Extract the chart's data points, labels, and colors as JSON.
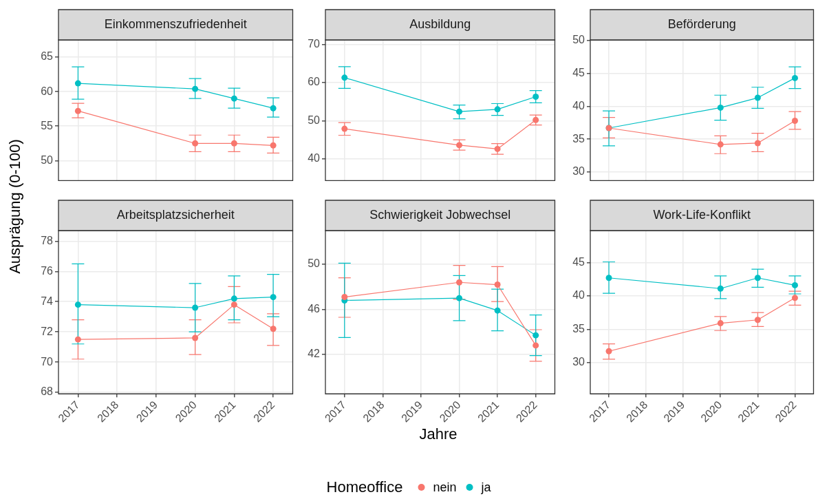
{
  "chart_data": [
    {
      "type": "line",
      "title": "Einkommenszufriedenheit",
      "legend_title": "Homeoffice",
      "legend": "bottom",
      "x": [
        2017,
        2020,
        2021,
        2022
      ],
      "xlim": [
        2016.5,
        2022.5
      ],
      "xticks": [
        2017,
        2018,
        2019,
        2020,
        2021,
        2022
      ],
      "ylim": [
        47.1,
        67.5
      ],
      "yticks": [
        50,
        55,
        60,
        65
      ],
      "tick_labels": "y",
      "grid": true,
      "marker": "circle",
      "series": [
        {
          "name": "nein",
          "color": "#f8766d",
          "values": [
            57.2,
            52.5,
            52.5,
            52.2
          ],
          "errors": [
            [
              56.2,
              58.3
            ],
            [
              51.3,
              53.7
            ],
            [
              51.3,
              53.7
            ],
            [
              51.1,
              53.4
            ]
          ]
        },
        {
          "name": "ja",
          "color": "#00bfc4",
          "values": [
            61.2,
            60.4,
            59.0,
            57.6
          ],
          "errors": [
            [
              58.9,
              63.6
            ],
            [
              59.0,
              61.9
            ],
            [
              57.6,
              60.5
            ],
            [
              56.3,
              59.1
            ]
          ]
        }
      ]
    },
    {
      "type": "line",
      "title": "Ausbildung",
      "x": [
        2017,
        2020,
        2021,
        2022
      ],
      "xlim": [
        2016.5,
        2022.5
      ],
      "xticks": [
        2017,
        2018,
        2019,
        2020,
        2021,
        2022
      ],
      "ylim": [
        34.3,
        71.2
      ],
      "yticks": [
        40,
        50,
        60,
        70
      ],
      "tick_labels": "y",
      "grid": true,
      "marker": "circle",
      "series": [
        {
          "color": "#f8766d",
          "values": [
            47.9,
            43.6,
            42.6,
            50.2
          ],
          "errors": [
            [
              46.2,
              49.5
            ],
            [
              42.3,
              45.0
            ],
            [
              41.2,
              44.0
            ],
            [
              48.9,
              51.5
            ]
          ]
        },
        {
          "color": "#00bfc4",
          "values": [
            61.3,
            52.4,
            53.0,
            56.3
          ],
          "errors": [
            [
              58.5,
              64.2
            ],
            [
              50.5,
              54.1
            ],
            [
              51.4,
              54.5
            ],
            [
              54.7,
              57.9
            ]
          ]
        }
      ]
    },
    {
      "type": "line",
      "title": "Beförderung",
      "x": [
        2017,
        2020,
        2021,
        2022
      ],
      "xlim": [
        2016.5,
        2022.5
      ],
      "xticks": [
        2017,
        2018,
        2019,
        2020,
        2021,
        2022
      ],
      "ylim": [
        28.7,
        50.1
      ],
      "yticks": [
        30,
        35,
        40,
        45,
        50
      ],
      "tick_labels": "y",
      "grid": true,
      "marker": "circle",
      "series": [
        {
          "color": "#f8766d",
          "values": [
            36.7,
            34.2,
            34.4,
            37.8
          ],
          "errors": [
            [
              35.2,
              38.3
            ],
            [
              32.8,
              35.5
            ],
            [
              33.1,
              35.9
            ],
            [
              36.5,
              39.2
            ]
          ]
        },
        {
          "color": "#00bfc4",
          "values": [
            36.7,
            39.8,
            41.3,
            44.3
          ],
          "errors": [
            [
              34.0,
              39.3
            ],
            [
              37.9,
              41.7
            ],
            [
              39.7,
              42.9
            ],
            [
              42.7,
              46.0
            ]
          ]
        }
      ]
    },
    {
      "type": "line",
      "title": "Arbeitsplatzsicherheit",
      "ylabel": "Ausprägung (0-100)",
      "x": [
        2017,
        2020,
        2021,
        2022
      ],
      "xlim": [
        2016.5,
        2022.5
      ],
      "xticks": [
        2017,
        2018,
        2019,
        2020,
        2021,
        2022
      ],
      "ylim": [
        67.9,
        78.7
      ],
      "yticks": [
        68,
        70,
        72,
        74,
        76,
        78
      ],
      "grid": true,
      "marker": "circle",
      "series": [
        {
          "color": "#f8766d",
          "values": [
            71.5,
            71.6,
            73.8,
            72.2
          ],
          "errors": [
            [
              70.2,
              72.8
            ],
            [
              70.5,
              72.8
            ],
            [
              72.6,
              75.0
            ],
            [
              71.1,
              73.2
            ]
          ]
        },
        {
          "color": "#00bfc4",
          "values": [
            73.8,
            73.6,
            74.2,
            74.3
          ],
          "errors": [
            [
              71.2,
              76.5
            ],
            [
              72.0,
              75.2
            ],
            [
              72.8,
              75.7
            ],
            [
              73.0,
              75.8
            ]
          ]
        }
      ]
    },
    {
      "type": "line",
      "title": "Schwierigkeit Jobwechsel",
      "xlabel": "Jahre",
      "x": [
        2017,
        2020,
        2021,
        2022
      ],
      "xlim": [
        2016.5,
        2022.5
      ],
      "xticks": [
        2017,
        2018,
        2019,
        2020,
        2021,
        2022
      ],
      "ylim": [
        38.5,
        53.0
      ],
      "yticks": [
        42,
        46,
        50
      ],
      "grid": true,
      "marker": "circle",
      "series": [
        {
          "color": "#f8766d",
          "values": [
            47.1,
            48.4,
            48.2,
            42.8
          ],
          "errors": [
            [
              45.3,
              48.8
            ],
            [
              46.9,
              49.9
            ],
            [
              46.7,
              49.8
            ],
            [
              41.4,
              44.2
            ]
          ]
        },
        {
          "color": "#00bfc4",
          "values": [
            46.8,
            47.0,
            45.9,
            43.7
          ],
          "errors": [
            [
              43.5,
              50.1
            ],
            [
              45.0,
              49.0
            ],
            [
              44.1,
              47.8
            ],
            [
              41.9,
              45.5
            ]
          ]
        }
      ]
    },
    {
      "type": "line",
      "title": "Work-Life-Konflikt",
      "x": [
        2017,
        2020,
        2021,
        2022
      ],
      "xlim": [
        2016.5,
        2022.5
      ],
      "xticks": [
        2017,
        2018,
        2019,
        2020,
        2021,
        2022
      ],
      "ylim": [
        25.3,
        49.8
      ],
      "yticks": [
        30,
        35,
        40,
        45
      ],
      "grid": true,
      "marker": "circle",
      "series": [
        {
          "color": "#f8766d",
          "values": [
            31.7,
            35.9,
            36.4,
            39.7
          ],
          "errors": [
            [
              30.5,
              32.8
            ],
            [
              34.8,
              36.9
            ],
            [
              35.4,
              37.5
            ],
            [
              38.6,
              40.7
            ]
          ]
        },
        {
          "color": "#00bfc4",
          "values": [
            42.7,
            41.1,
            42.7,
            41.6
          ],
          "errors": [
            [
              40.4,
              45.1
            ],
            [
              39.6,
              43.0
            ],
            [
              41.3,
              44.0
            ],
            [
              40.3,
              43.0
            ]
          ]
        }
      ]
    }
  ]
}
